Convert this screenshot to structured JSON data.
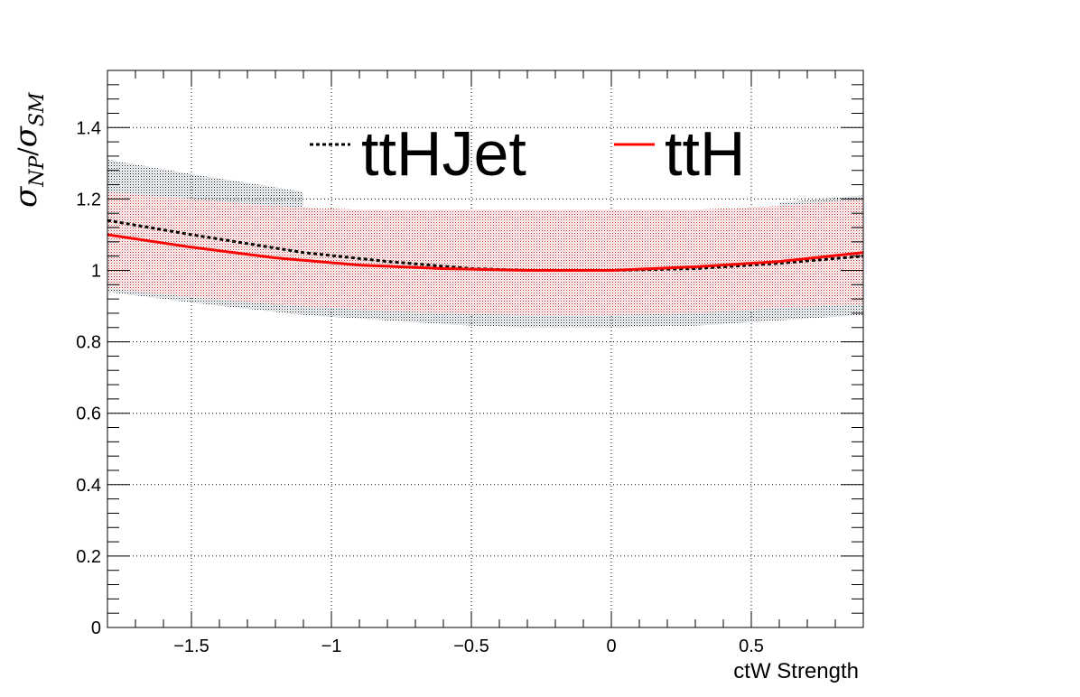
{
  "chart_data": {
    "type": "line",
    "xlabel": "ctW Strength",
    "ylabel": {
      "main": "σ",
      "sub1": "NP",
      "slash": "/",
      "main2": "σ",
      "sub2": "SM"
    },
    "xlim": [
      -1.8,
      0.9
    ],
    "ylim": [
      0,
      1.56
    ],
    "x_ticks": [
      -1.5,
      -1,
      -0.5,
      0,
      0.5
    ],
    "x_tick_labels": [
      "−1.5",
      "−1",
      "−0.5",
      "0",
      "0.5"
    ],
    "y_ticks": [
      0,
      0.2,
      0.4,
      0.6,
      0.8,
      1,
      1.2,
      1.4
    ],
    "y_tick_labels": [
      "0",
      "0.2",
      "0.4",
      "0.6",
      "0.8",
      "1",
      "1.2",
      "1.4"
    ],
    "grid": true,
    "legend_placement": "top",
    "series": [
      {
        "name": "ttHJet",
        "color": "#000000",
        "style": "dotted",
        "band_color": "#1a2a3a",
        "x": [
          -1.8,
          -1.5,
          -1.1,
          -1.1,
          -0.8,
          -0.5,
          -0.3,
          0,
          0.3,
          0.6,
          0.6,
          0.9
        ],
        "y": [
          1.14,
          1.1,
          1.05,
          1.05,
          1.025,
          1.005,
          1.0,
          1.0,
          1.005,
          1.02,
          1.02,
          1.04
        ],
        "band_low": [
          0.94,
          0.91,
          0.875,
          0.875,
          0.86,
          0.845,
          0.84,
          0.84,
          0.845,
          0.86,
          0.86,
          0.875
        ],
        "band_high": [
          1.31,
          1.27,
          1.22,
          1.17,
          1.17,
          1.17,
          1.17,
          1.17,
          1.17,
          1.17,
          1.19,
          1.21
        ]
      },
      {
        "name": "ttH",
        "color": "#ff0000",
        "style": "solid",
        "band_color": "#ff3030",
        "x": [
          -1.8,
          -1.5,
          -1.2,
          -0.9,
          -0.6,
          -0.3,
          0,
          0.3,
          0.6,
          0.9
        ],
        "y": [
          1.1,
          1.065,
          1.035,
          1.015,
          1.005,
          1.0,
          1.0,
          1.01,
          1.025,
          1.05
        ],
        "band_low": [
          0.95,
          0.925,
          0.905,
          0.89,
          0.88,
          0.875,
          0.875,
          0.88,
          0.895,
          0.905
        ],
        "band_high": [
          1.22,
          1.2,
          1.18,
          1.17,
          1.17,
          1.17,
          1.17,
          1.17,
          1.18,
          1.2
        ]
      }
    ]
  },
  "legend": [
    {
      "label": "ttHJet",
      "color": "#000000",
      "style": "dotted"
    },
    {
      "label": "ttH",
      "color": "#ff0000",
      "style": "solid"
    }
  ]
}
